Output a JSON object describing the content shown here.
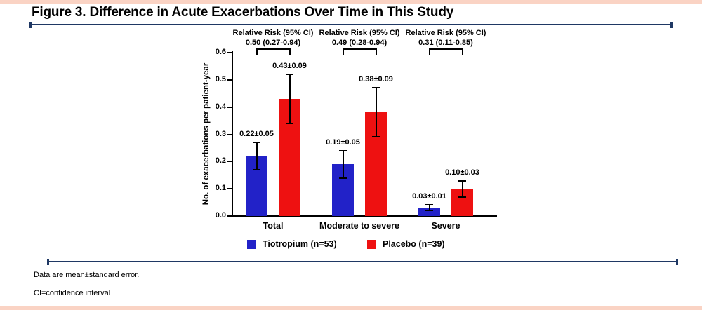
{
  "page": {
    "accent_pink": "#fad3c4",
    "rule_navy": "#1f3864"
  },
  "header": {
    "title": "Figure 3. Difference in Acute Exacerbations Over Time in This Study"
  },
  "chart_data": {
    "type": "bar",
    "title": "Figure 3. Difference in Acute Exacerbations Over Time in This Study",
    "xlabel": "",
    "ylabel": "No. of exacerbations per patient-year",
    "ylim": [
      0,
      0.6
    ],
    "yticks": [
      0.0,
      0.1,
      0.2,
      0.3,
      0.4,
      0.5,
      0.6
    ],
    "grid": false,
    "legend_position": "bottom",
    "categories": [
      "Total",
      "Moderate to severe",
      "Severe"
    ],
    "series": [
      {
        "name": "Tiotropium (n=53)",
        "color": "#2222c8",
        "values": [
          0.22,
          0.19,
          0.03
        ],
        "errors": [
          0.05,
          0.05,
          0.01
        ],
        "labels": [
          "0.22±0.05",
          "0.19±0.05",
          "0.03±0.01"
        ]
      },
      {
        "name": "Placebo (n=39)",
        "color": "#ee1111",
        "values": [
          0.43,
          0.38,
          0.1
        ],
        "errors": [
          0.09,
          0.09,
          0.03
        ],
        "labels": [
          "0.43±0.09",
          "0.38±0.09",
          "0.10±0.03"
        ]
      }
    ],
    "annotations": [
      {
        "line1": "Relative Risk (95% CI)",
        "line2": "0.50 (0.27-0.94)"
      },
      {
        "line1": "Relative Risk (95% CI)",
        "line2": "0.49 (0.28-0.94)"
      },
      {
        "line1": "Relative Risk (95% CI)",
        "line2": "0.31 (0.11-0.85)"
      }
    ]
  },
  "footnotes": [
    "Data are mean±standard error.",
    "CI=confidence interval"
  ]
}
